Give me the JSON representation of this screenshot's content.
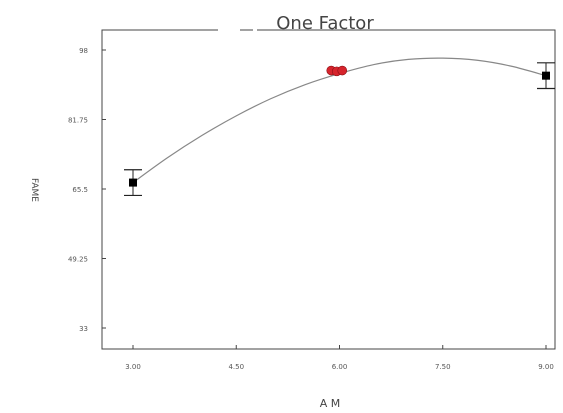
{
  "chart_data": {
    "type": "scatter",
    "title": "One Factor",
    "xlabel": "A  M",
    "ylabel": "FAME",
    "xlim": [
      3.0,
      9.0
    ],
    "ylim": [
      33,
      98
    ],
    "x_ticks": [
      3,
      4.5,
      6,
      7.5,
      9
    ],
    "x_tick_labels": [
      "3.00",
      "4.50",
      "6.00",
      "7.50",
      "9.00"
    ],
    "y_ticks": [
      33,
      49.25,
      65.5,
      81.75,
      98
    ],
    "y_tick_labels": [
      "33",
      "49.25",
      "65.5",
      "81.75",
      "98"
    ],
    "series": [
      {
        "kind": "fit-curve",
        "x": [
          3.0,
          3.5,
          4.0,
          4.5,
          5.0,
          5.5,
          6.0,
          6.5,
          7.0,
          7.5,
          8.0,
          8.5,
          9.0
        ],
        "y": [
          67.0,
          72.8,
          78.0,
          82.6,
          86.6,
          89.9,
          92.5,
          94.6,
          95.8,
          96.1,
          95.6,
          94.2,
          92.0
        ],
        "color": "#888888"
      },
      {
        "kind": "design-points",
        "x": [
          3.0,
          9.0
        ],
        "y": [
          67.0,
          92.0
        ],
        "err": [
          3.0,
          3.0
        ],
        "color": "#000000"
      },
      {
        "kind": "center-points",
        "x": [
          5.88,
          5.96,
          6.04
        ],
        "y": [
          93.2,
          93.0,
          93.2
        ],
        "color": "#d6242c"
      }
    ]
  }
}
